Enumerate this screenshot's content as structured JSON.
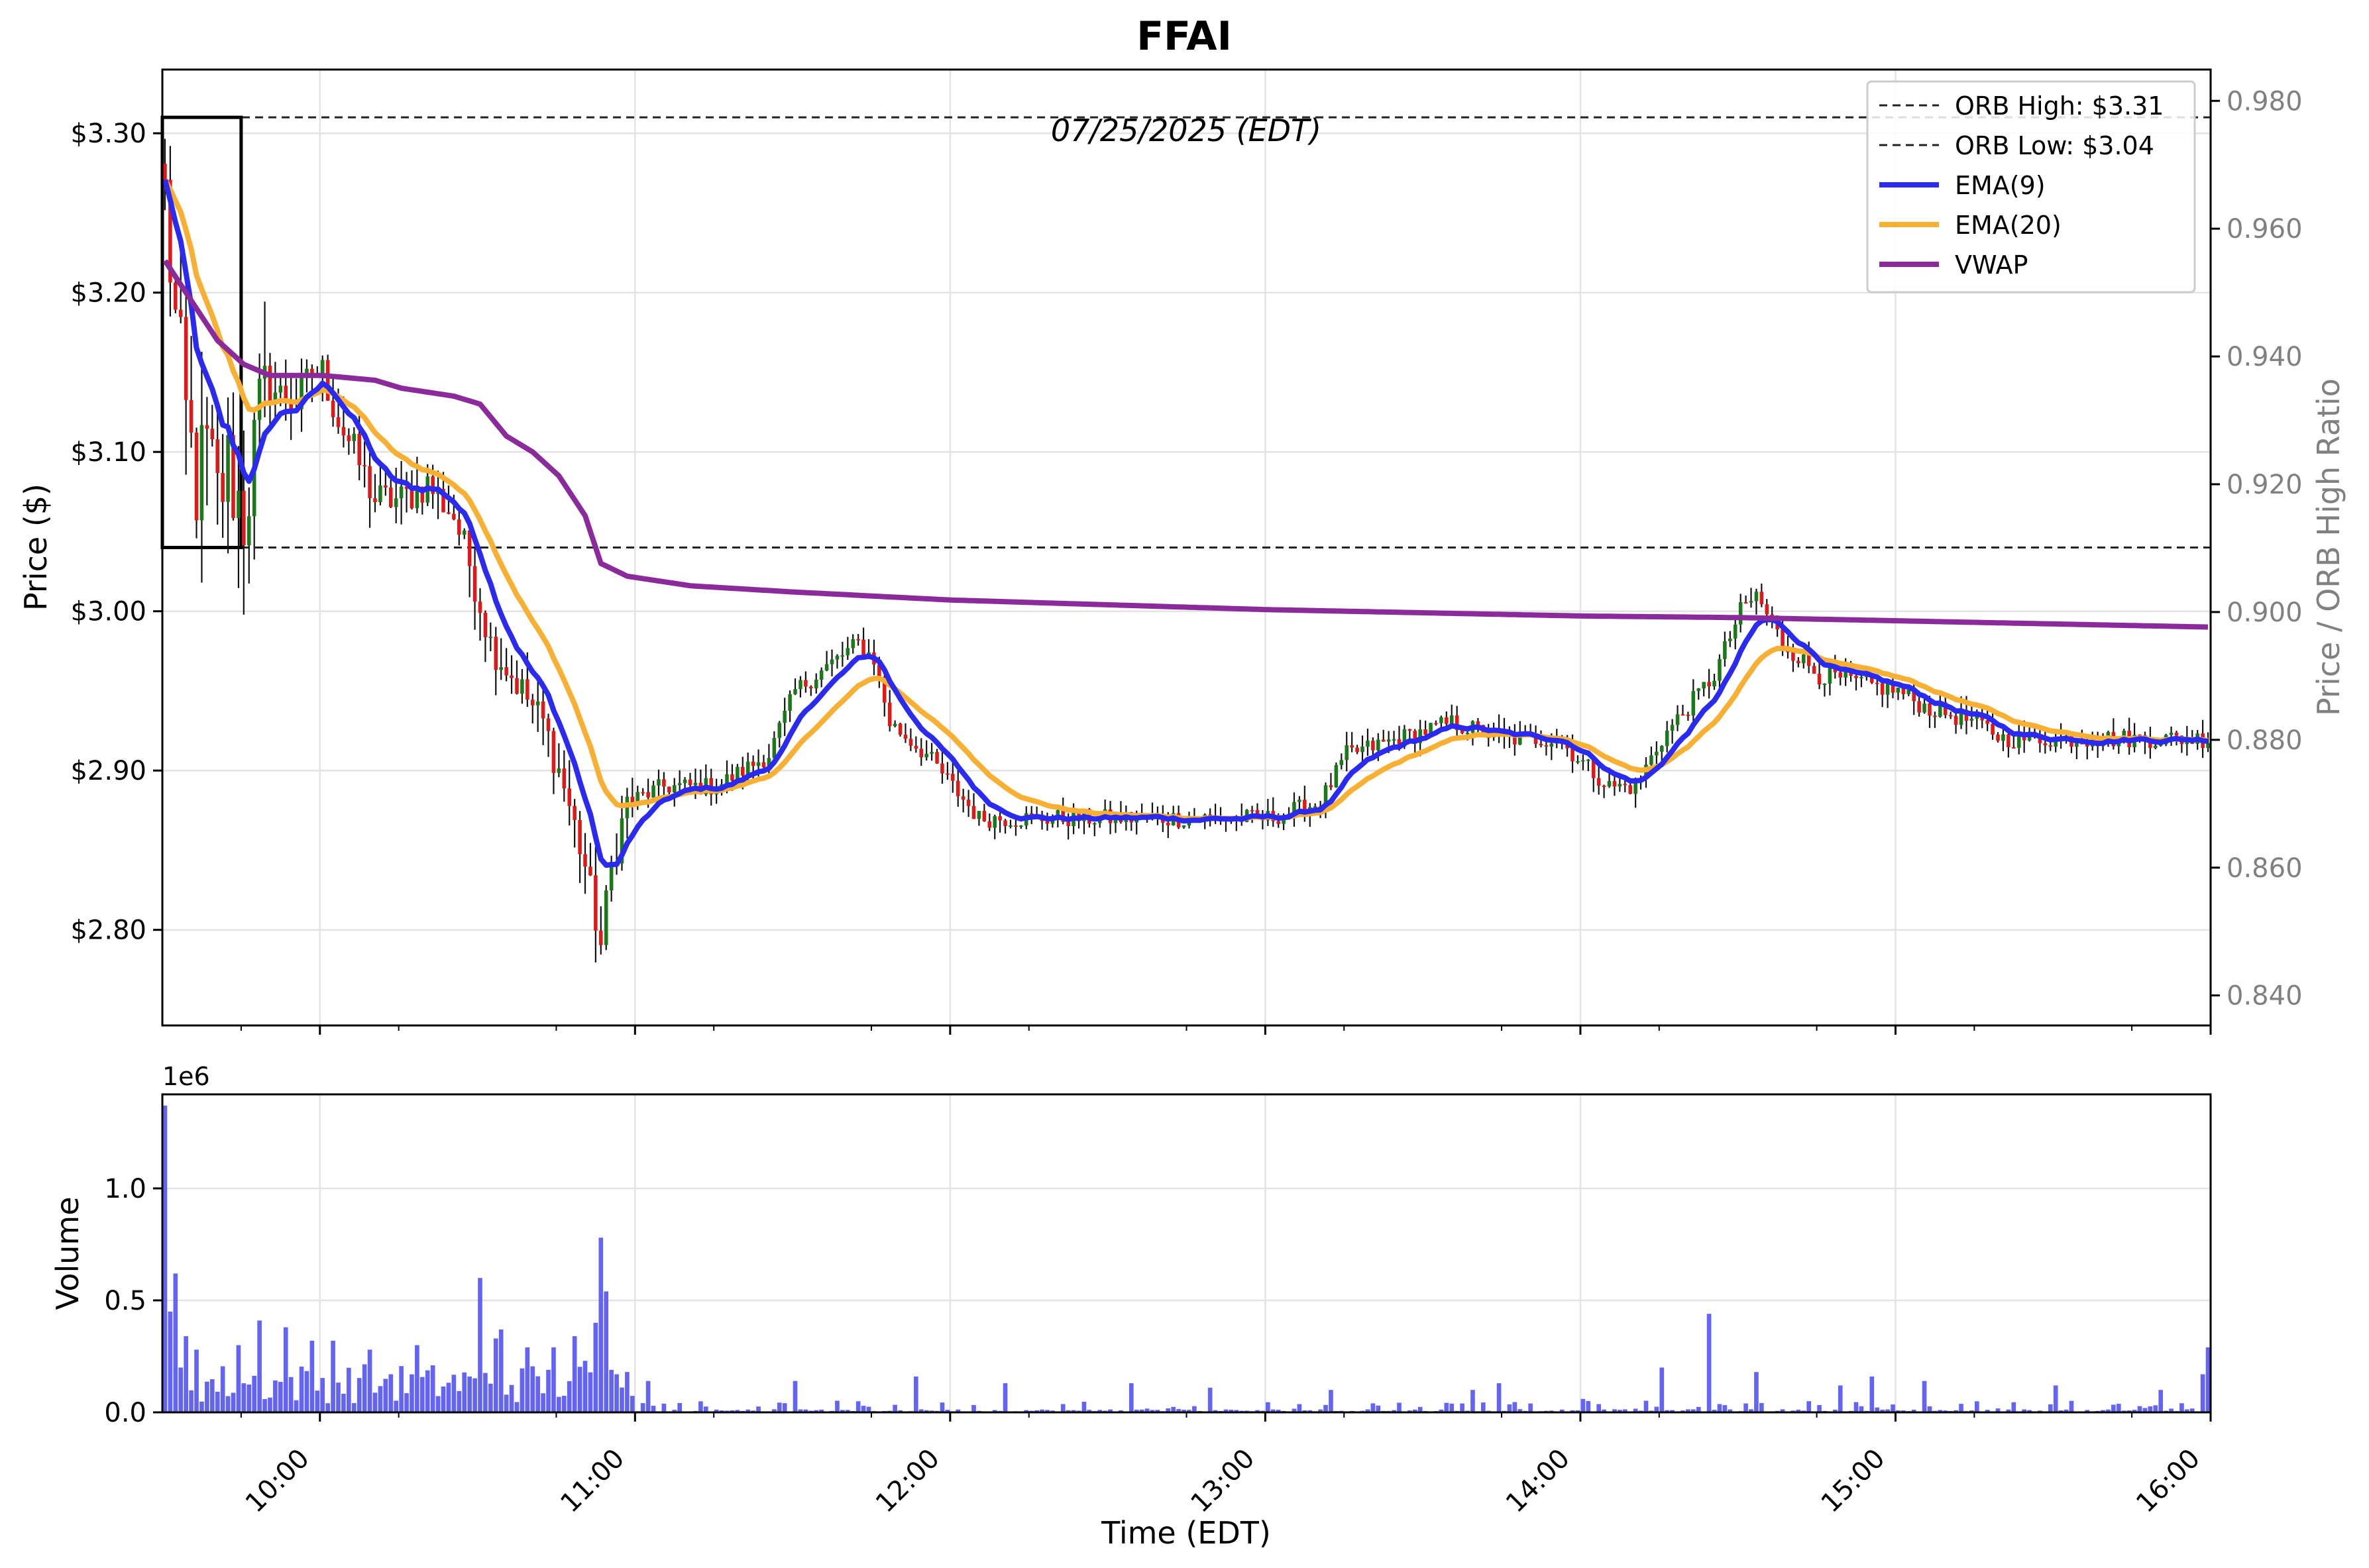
{
  "chart_data": {
    "type": "candlestick",
    "title": "FFAI",
    "date_label": "07/25/2025 (EDT)",
    "price_panel": {
      "ylabel": "Price ($)",
      "ylim": [
        2.74,
        3.34
      ],
      "yticks": [
        {
          "value": 2.8,
          "label": "$2.80"
        },
        {
          "value": 2.9,
          "label": "$2.90"
        },
        {
          "value": 3.0,
          "label": "$3.00"
        },
        {
          "value": 3.1,
          "label": "$3.10"
        },
        {
          "value": 3.2,
          "label": "$3.20"
        },
        {
          "value": 3.3,
          "label": "$3.30"
        }
      ],
      "right_axis": {
        "ylabel": "Price / ORB High Ratio",
        "ylim": [
          0.8353,
          0.9849
        ],
        "yticks": [
          {
            "value": 0.84,
            "label": "0.840"
          },
          {
            "value": 0.86,
            "label": "0.860"
          },
          {
            "value": 0.88,
            "label": "0.880"
          },
          {
            "value": 0.9,
            "label": "0.900"
          },
          {
            "value": 0.92,
            "label": "0.920"
          },
          {
            "value": 0.94,
            "label": "0.940"
          },
          {
            "value": 0.96,
            "label": "0.960"
          },
          {
            "value": 0.98,
            "label": "0.980"
          }
        ]
      },
      "orb": {
        "high": 3.31,
        "low": 3.04,
        "start": "09:30",
        "end": "09:45"
      },
      "legend": {
        "placement": "top-right",
        "entries": [
          {
            "label": "ORB High: $3.31",
            "color": "#222222",
            "style": "dashed"
          },
          {
            "label": "ORB Low: $3.04",
            "color": "#222222",
            "style": "dashed"
          },
          {
            "label": "EMA(9)",
            "color": "#2a2af0",
            "style": "solid"
          },
          {
            "label": "EMA(20)",
            "color": "#f7b034",
            "style": "solid"
          },
          {
            "label": "VWAP",
            "color": "#8b2a9b",
            "style": "solid"
          }
        ]
      },
      "up_color": "#1a7a1a",
      "down_color": "#e01818",
      "wick_color": "#111111",
      "anchors": [
        {
          "t": "09:30",
          "p": 3.26
        },
        {
          "t": "09:32",
          "p": 3.18
        },
        {
          "t": "09:34",
          "p": 3.12
        },
        {
          "t": "09:36",
          "p": 3.08
        },
        {
          "t": "09:38",
          "p": 3.1
        },
        {
          "t": "09:40",
          "p": 3.07
        },
        {
          "t": "09:42",
          "p": 3.09
        },
        {
          "t": "09:45",
          "p": 3.06
        },
        {
          "t": "09:48",
          "p": 3.12
        },
        {
          "t": "09:50",
          "p": 3.14
        },
        {
          "t": "09:55",
          "p": 3.13
        },
        {
          "t": "09:58",
          "p": 3.15
        },
        {
          "t": "10:00",
          "p": 3.15
        },
        {
          "t": "10:03",
          "p": 3.12
        },
        {
          "t": "10:06",
          "p": 3.1
        },
        {
          "t": "10:10",
          "p": 3.07
        },
        {
          "t": "10:15",
          "p": 3.07
        },
        {
          "t": "10:20",
          "p": 3.08
        },
        {
          "t": "10:25",
          "p": 3.06
        },
        {
          "t": "10:28",
          "p": 3.03
        },
        {
          "t": "10:32",
          "p": 2.98
        },
        {
          "t": "10:38",
          "p": 2.95
        },
        {
          "t": "10:42",
          "p": 2.93
        },
        {
          "t": "10:46",
          "p": 2.89
        },
        {
          "t": "10:50",
          "p": 2.84
        },
        {
          "t": "10:53",
          "p": 2.79
        },
        {
          "t": "10:55",
          "p": 2.84
        },
        {
          "t": "10:58",
          "p": 2.88
        },
        {
          "t": "11:05",
          "p": 2.89
        },
        {
          "t": "11:15",
          "p": 2.89
        },
        {
          "t": "11:25",
          "p": 2.91
        },
        {
          "t": "11:30",
          "p": 2.95
        },
        {
          "t": "11:38",
          "p": 2.97
        },
        {
          "t": "11:42",
          "p": 2.98
        },
        {
          "t": "11:45",
          "p": 2.97
        },
        {
          "t": "11:48",
          "p": 2.93
        },
        {
          "t": "11:55",
          "p": 2.91
        },
        {
          "t": "12:00",
          "p": 2.89
        },
        {
          "t": "12:05",
          "p": 2.87
        },
        {
          "t": "12:15",
          "p": 2.87
        },
        {
          "t": "12:30",
          "p": 2.87
        },
        {
          "t": "12:45",
          "p": 2.87
        },
        {
          "t": "13:00",
          "p": 2.87
        },
        {
          "t": "13:10",
          "p": 2.88
        },
        {
          "t": "13:15",
          "p": 2.91
        },
        {
          "t": "13:25",
          "p": 2.92
        },
        {
          "t": "13:35",
          "p": 2.93
        },
        {
          "t": "13:45",
          "p": 2.92
        },
        {
          "t": "13:55",
          "p": 2.92
        },
        {
          "t": "14:05",
          "p": 2.89
        },
        {
          "t": "14:10",
          "p": 2.89
        },
        {
          "t": "14:15",
          "p": 2.92
        },
        {
          "t": "14:20",
          "p": 2.94
        },
        {
          "t": "14:25",
          "p": 2.96
        },
        {
          "t": "14:30",
          "p": 3.0
        },
        {
          "t": "14:33",
          "p": 3.01
        },
        {
          "t": "14:38",
          "p": 2.98
        },
        {
          "t": "14:45",
          "p": 2.96
        },
        {
          "t": "15:00",
          "p": 2.95
        },
        {
          "t": "15:05",
          "p": 2.94
        },
        {
          "t": "15:15",
          "p": 2.93
        },
        {
          "t": "15:20",
          "p": 2.92
        },
        {
          "t": "15:30",
          "p": 2.92
        },
        {
          "t": "15:45",
          "p": 2.92
        },
        {
          "t": "16:00",
          "p": 2.92
        }
      ],
      "vwap": [
        {
          "t": "09:30",
          "p": 3.22
        },
        {
          "t": "09:40",
          "p": 3.17
        },
        {
          "t": "09:45",
          "p": 3.155
        },
        {
          "t": "09:50",
          "p": 3.148
        },
        {
          "t": "10:00",
          "p": 3.148
        },
        {
          "t": "10:10",
          "p": 3.145
        },
        {
          "t": "10:15",
          "p": 3.14
        },
        {
          "t": "10:25",
          "p": 3.135
        },
        {
          "t": "10:30",
          "p": 3.13
        },
        {
          "t": "10:35",
          "p": 3.11
        },
        {
          "t": "10:40",
          "p": 3.1
        },
        {
          "t": "10:45",
          "p": 3.085
        },
        {
          "t": "10:50",
          "p": 3.06
        },
        {
          "t": "10:53",
          "p": 3.03
        },
        {
          "t": "10:58",
          "p": 3.022
        },
        {
          "t": "11:10",
          "p": 3.016
        },
        {
          "t": "11:30",
          "p": 3.012
        },
        {
          "t": "12:00",
          "p": 3.007
        },
        {
          "t": "12:30",
          "p": 3.004
        },
        {
          "t": "13:00",
          "p": 3.001
        },
        {
          "t": "13:30",
          "p": 2.999
        },
        {
          "t": "14:00",
          "p": 2.997
        },
        {
          "t": "14:30",
          "p": 2.996
        },
        {
          "t": "15:00",
          "p": 2.994
        },
        {
          "t": "15:30",
          "p": 2.992
        },
        {
          "t": "16:00",
          "p": 2.99
        }
      ]
    },
    "volume_panel": {
      "ylabel": "Volume",
      "scale_label": "1e6",
      "ylim": [
        0,
        1.42
      ],
      "yticks": [
        {
          "value": 0.0,
          "label": "0.0"
        },
        {
          "value": 0.5,
          "label": "0.5"
        },
        {
          "value": 1.0,
          "label": "1.0"
        }
      ],
      "bar_color": "#5b5bf5",
      "spikes": [
        {
          "t": "09:30",
          "v": 1.37
        },
        {
          "t": "09:31",
          "v": 0.45
        },
        {
          "t": "09:32",
          "v": 0.62
        },
        {
          "t": "09:33",
          "v": 0.2
        },
        {
          "t": "09:34",
          "v": 0.34
        },
        {
          "t": "09:36",
          "v": 0.28
        },
        {
          "t": "09:44",
          "v": 0.3
        },
        {
          "t": "09:48",
          "v": 0.41
        },
        {
          "t": "09:53",
          "v": 0.38
        },
        {
          "t": "09:58",
          "v": 0.32
        },
        {
          "t": "10:02",
          "v": 0.32
        },
        {
          "t": "10:09",
          "v": 0.28
        },
        {
          "t": "10:13",
          "v": 0.17
        },
        {
          "t": "10:18",
          "v": 0.3
        },
        {
          "t": "10:28",
          "v": 0.16
        },
        {
          "t": "10:30",
          "v": 0.6
        },
        {
          "t": "10:33",
          "v": 0.33
        },
        {
          "t": "10:34",
          "v": 0.37
        },
        {
          "t": "10:39",
          "v": 0.29
        },
        {
          "t": "10:44",
          "v": 0.29
        },
        {
          "t": "10:48",
          "v": 0.34
        },
        {
          "t": "10:50",
          "v": 0.23
        },
        {
          "t": "10:52",
          "v": 0.4
        },
        {
          "t": "10:53",
          "v": 0.78
        },
        {
          "t": "10:54",
          "v": 0.54
        },
        {
          "t": "10:56",
          "v": 0.17
        },
        {
          "t": "11:02",
          "v": 0.14
        },
        {
          "t": "11:30",
          "v": 0.14
        },
        {
          "t": "11:53",
          "v": 0.16
        },
        {
          "t": "12:10",
          "v": 0.13
        },
        {
          "t": "12:34",
          "v": 0.13
        },
        {
          "t": "12:49",
          "v": 0.11
        },
        {
          "t": "13:12",
          "v": 0.1
        },
        {
          "t": "13:39",
          "v": 0.1
        },
        {
          "t": "13:44",
          "v": 0.13
        },
        {
          "t": "14:00",
          "v": 0.06
        },
        {
          "t": "14:15",
          "v": 0.2
        },
        {
          "t": "14:24",
          "v": 0.44
        },
        {
          "t": "14:33",
          "v": 0.18
        },
        {
          "t": "14:49",
          "v": 0.12
        },
        {
          "t": "14:55",
          "v": 0.16
        },
        {
          "t": "15:05",
          "v": 0.14
        },
        {
          "t": "15:30",
          "v": 0.12
        },
        {
          "t": "15:50",
          "v": 0.1
        },
        {
          "t": "15:58",
          "v": 0.17
        },
        {
          "t": "15:59",
          "v": 0.29
        }
      ]
    },
    "x_axis": {
      "xlabel": "Time (EDT)",
      "xlim": [
        "09:30",
        "16:00"
      ],
      "ticks": [
        "10:00",
        "11:00",
        "12:00",
        "13:00",
        "14:00",
        "15:00",
        "16:00"
      ]
    },
    "grid": true
  }
}
